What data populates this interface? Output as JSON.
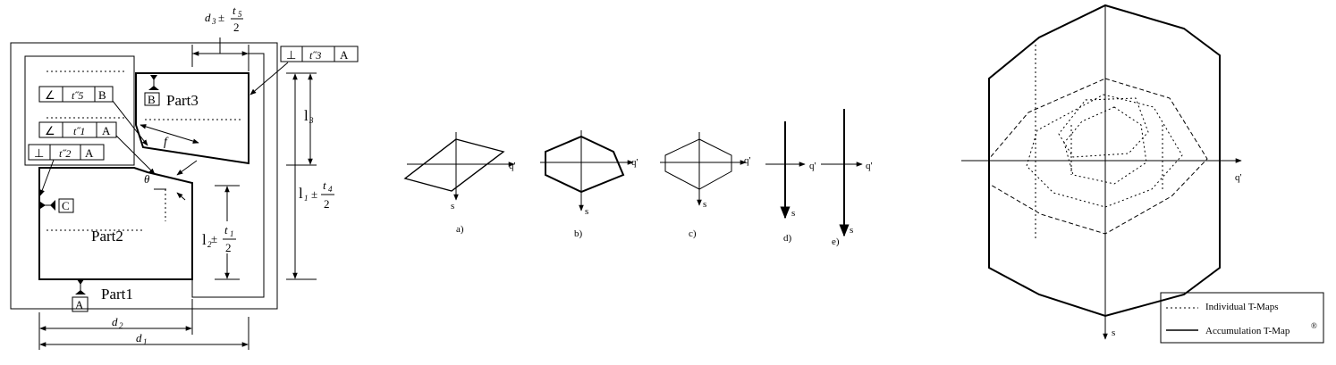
{
  "assembly": {
    "parts": [
      "Part1",
      "Part2",
      "Part3"
    ],
    "datums": [
      "A",
      "B",
      "C"
    ],
    "fcf_perp_top": {
      "symbol": "⊥",
      "value": "t˝3",
      "datum": "A"
    },
    "fcf_angle_b": {
      "symbol": "∠",
      "value": "t˝5",
      "datum": "B"
    },
    "fcf_angle_a": {
      "symbol": "∠",
      "value": "t˝1",
      "datum": "A"
    },
    "fcf_perp_left": {
      "symbol": "⊥",
      "value": "t˝2",
      "datum": "A"
    },
    "dim_top": {
      "name": "d",
      "sub": "3",
      "pm": "±",
      "num": "t",
      "num_sub": "5",
      "den": "2"
    },
    "dim_l1": {
      "name": "l",
      "sub": "1",
      "pm": "±",
      "num": "t",
      "num_sub": "4",
      "den": "2"
    },
    "dim_l2": {
      "name": "l",
      "sub": "2",
      "pm": "±",
      "num": "t",
      "num_sub": "1",
      "den": "2"
    },
    "dim_l3": {
      "name": "l",
      "sub": "3"
    },
    "dim_d1": {
      "name": "d",
      "sub": "1"
    },
    "dim_d2": {
      "name": "d",
      "sub": "2"
    },
    "label_f": "f",
    "label_theta": "θ"
  },
  "tmaps": [
    {
      "letter": "a)",
      "axis_h": "q'",
      "axis_v": "s"
    },
    {
      "letter": "b)",
      "axis_h": "q'",
      "axis_v": "s"
    },
    {
      "letter": "c)",
      "axis_h": "q'",
      "axis_v": "s"
    },
    {
      "letter": "d)",
      "axis_h": "q'",
      "axis_v": "s"
    },
    {
      "letter": "e)",
      "axis_h": "q'",
      "axis_v": "s"
    }
  ],
  "accumulation": {
    "axis_h": "q'",
    "axis_v": "s",
    "legend": {
      "individual": "Individual T-Maps",
      "accumulation": "Accumulation T-Map",
      "mark": "®"
    }
  }
}
